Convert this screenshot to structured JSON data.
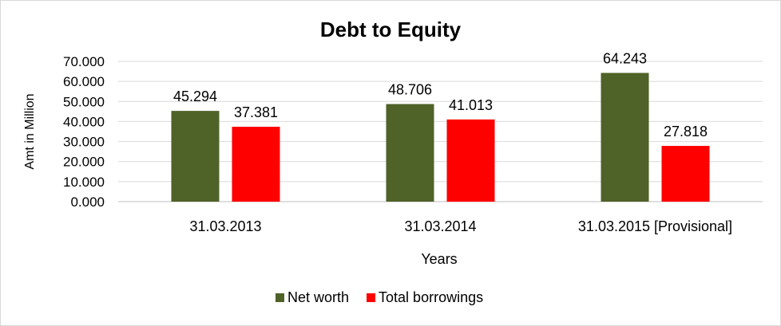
{
  "chart_data": {
    "type": "bar",
    "title": "Debt to Equity",
    "xlabel": "Years",
    "ylabel": "Amt in Million",
    "categories": [
      "31.03.2013",
      "31.03.2014",
      "31.03.2015 [Provisional]"
    ],
    "series": [
      {
        "name": "Net worth",
        "color": "#4f6228",
        "values": [
          45.294,
          48.706,
          64.243
        ],
        "labels": [
          "45.294",
          "48.706",
          "64.243"
        ]
      },
      {
        "name": "Total borrowings",
        "color": "#ff0000",
        "values": [
          37.381,
          41.013,
          27.818
        ],
        "labels": [
          "37.381",
          "41.013",
          "27.818"
        ]
      }
    ],
    "ylim": [
      0,
      70
    ],
    "yticks": [
      0,
      10,
      20,
      30,
      40,
      50,
      60,
      70
    ],
    "ytick_labels": [
      "0.000",
      "10.000",
      "20.000",
      "30.000",
      "40.000",
      "50.000",
      "60.000",
      "70.000"
    ],
    "grid": true,
    "legend": "bottom"
  }
}
